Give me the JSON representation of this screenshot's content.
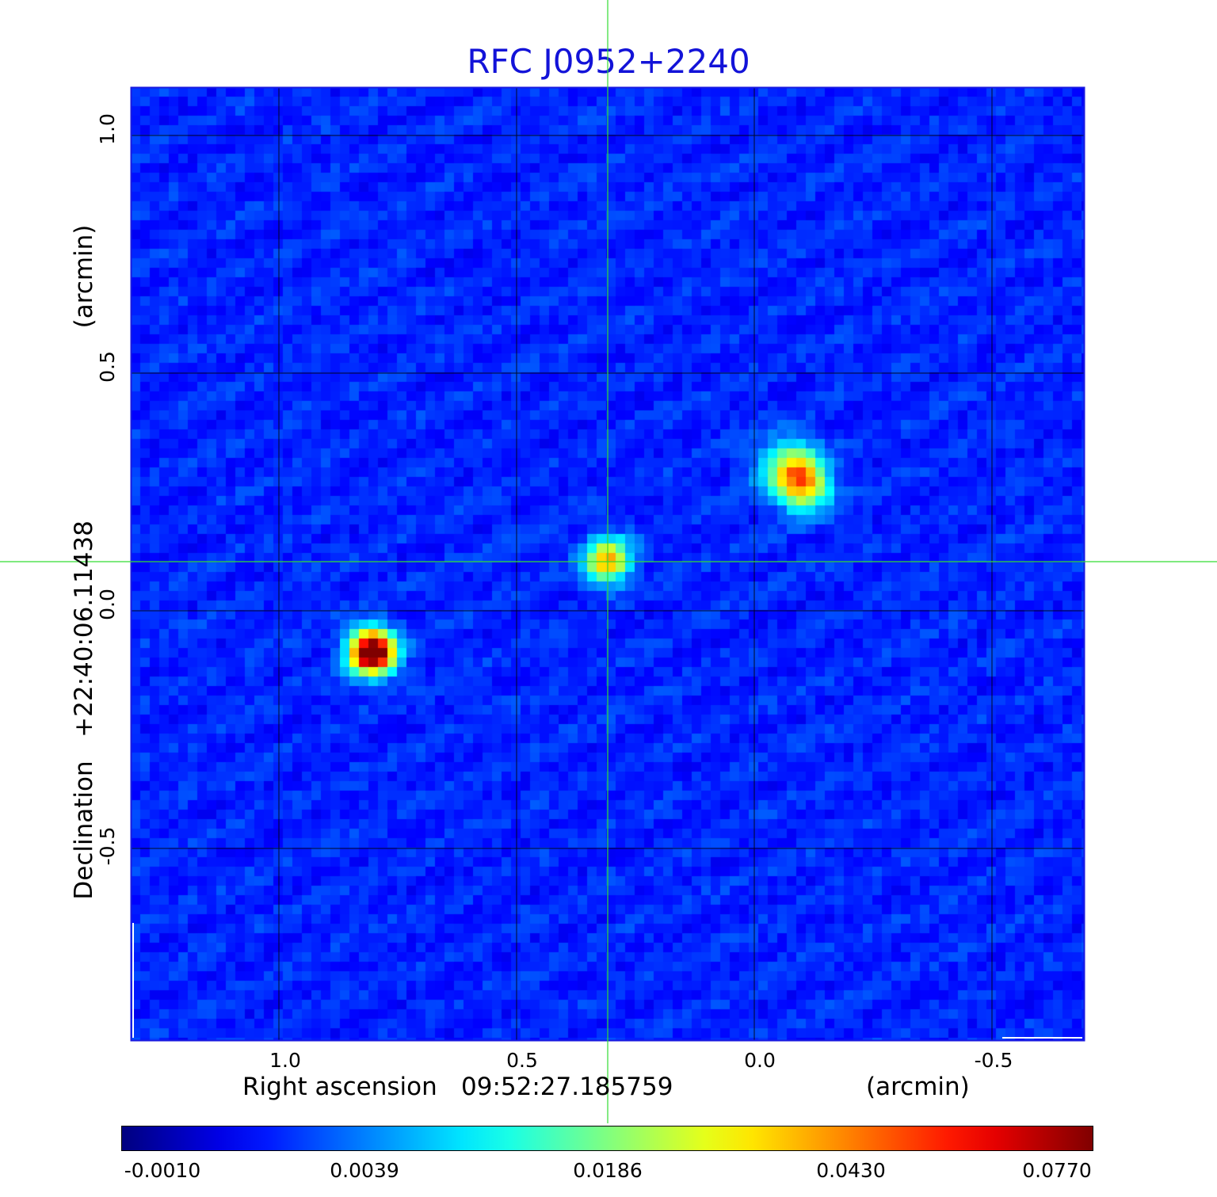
{
  "title": "RFC J0952+2240",
  "xaxis": {
    "label": "Right ascension",
    "center": "09:52:27.185759",
    "unit": "(arcmin)",
    "ticks": [
      "1.0",
      "0.5",
      "0.0",
      "-0.5"
    ]
  },
  "yaxis": {
    "label": "Declination",
    "center": "+22:40:06.11438",
    "unit": "(arcmin)",
    "ticks": [
      "1.0",
      "0.5",
      "0.0",
      "-0.5"
    ]
  },
  "colorbar": {
    "colormap": "jet",
    "labels": [
      "-0.0010",
      "0.0039",
      "0.0186",
      "0.0430",
      "0.0770"
    ]
  },
  "colors": {
    "title": "#1313d8",
    "crosshair": "#33dd33",
    "grid": "#000000"
  }
}
